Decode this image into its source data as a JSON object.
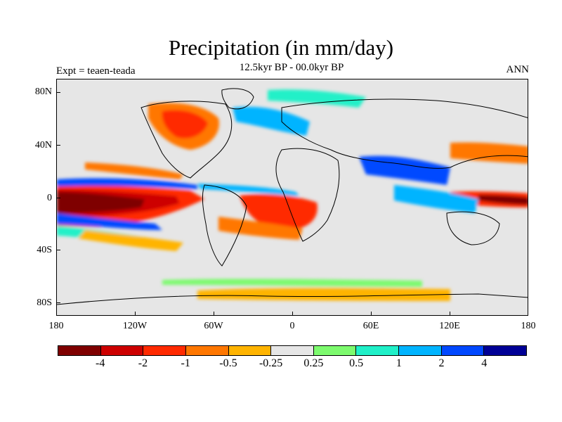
{
  "title": "Precipitation (in mm/day)",
  "subtitle": "12.5kyr BP - 00.0kyr BP",
  "experiment_label": "Expt = teaen-teada",
  "season_label": "ANN",
  "map": {
    "projection": "cylindrical equidistant",
    "background_color": "#e6e6e6",
    "lat_ticks": [
      "80N",
      "40N",
      "0",
      "40S",
      "80S"
    ],
    "lon_ticks": [
      "180",
      "120W",
      "60W",
      "0",
      "60E",
      "120E",
      "180"
    ]
  },
  "colorbar": {
    "colors": [
      "#7f0000",
      "#cd0000",
      "#ff2a00",
      "#ff7700",
      "#ffb400",
      "#e6e6e6",
      "#7dfa6e",
      "#20f0c8",
      "#00b4ff",
      "#0048ff",
      "#000096"
    ],
    "labels": [
      "-4",
      "-2",
      "-1",
      "-0.5",
      "-0.25",
      "0.25",
      "0.5",
      "1",
      "2",
      "4"
    ]
  }
}
